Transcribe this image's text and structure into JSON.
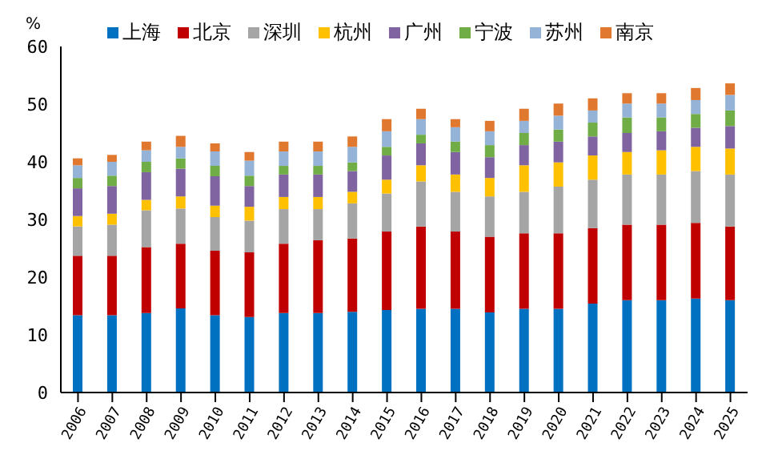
{
  "chart_data": {
    "type": "bar",
    "stacked": true,
    "ylabel": "%",
    "legend": "top",
    "grid": false,
    "categories": [
      "2006",
      "2007",
      "2008",
      "2009",
      "2010",
      "2011",
      "2012",
      "2013",
      "2014",
      "2015",
      "2016",
      "2017",
      "2018",
      "2019",
      "2020",
      "2021",
      "2022",
      "2023",
      "2024",
      "2025"
    ],
    "ylim": [
      0,
      60
    ],
    "yticks": [
      0,
      10,
      20,
      30,
      40,
      50,
      60
    ],
    "series": [
      {
        "name": "上海",
        "color": "#0070c0",
        "values": [
          13.4,
          13.4,
          13.8,
          14.6,
          13.4,
          13.1,
          13.8,
          13.8,
          14.0,
          14.3,
          14.5,
          14.5,
          13.9,
          14.5,
          14.5,
          15.4,
          16.0,
          16.0,
          16.3,
          16.0
        ]
      },
      {
        "name": "北京",
        "color": "#c00000",
        "values": [
          10.3,
          10.3,
          11.4,
          11.2,
          11.2,
          11.2,
          12.0,
          12.6,
          12.7,
          13.6,
          14.3,
          13.4,
          13.1,
          13.1,
          13.1,
          13.1,
          13.1,
          13.1,
          13.1,
          12.8
        ]
      },
      {
        "name": "深圳",
        "color": "#a5a5a5",
        "values": [
          5.1,
          5.4,
          6.4,
          6.1,
          5.8,
          5.5,
          6.0,
          5.4,
          6.1,
          6.6,
          7.8,
          6.9,
          7.0,
          7.2,
          8.1,
          8.4,
          8.7,
          8.7,
          9.0,
          9.0
        ]
      },
      {
        "name": "杭州",
        "color": "#ffc000",
        "values": [
          1.8,
          1.9,
          1.8,
          2.1,
          2.0,
          2.4,
          2.1,
          2.1,
          2.0,
          2.4,
          2.8,
          3.0,
          3.2,
          4.6,
          4.2,
          4.2,
          3.9,
          4.2,
          4.2,
          4.5
        ]
      },
      {
        "name": "广州",
        "color": "#8064a2",
        "values": [
          4.8,
          4.8,
          4.8,
          4.8,
          5.1,
          3.6,
          3.9,
          3.9,
          3.6,
          4.2,
          3.8,
          3.9,
          3.6,
          3.5,
          3.6,
          3.3,
          3.3,
          3.3,
          3.3,
          3.9
        ]
      },
      {
        "name": "宁波",
        "color": "#70ad47",
        "values": [
          1.8,
          1.8,
          1.8,
          1.8,
          1.8,
          1.8,
          1.5,
          1.5,
          1.5,
          1.5,
          1.5,
          1.8,
          2.1,
          2.1,
          2.1,
          2.4,
          2.7,
          2.4,
          2.4,
          2.7
        ]
      },
      {
        "name": "苏州",
        "color": "#95b3d7",
        "values": [
          2.2,
          2.4,
          2.0,
          2.0,
          2.5,
          2.6,
          2.5,
          2.5,
          2.7,
          2.7,
          2.7,
          2.5,
          2.4,
          2.1,
          2.4,
          2.1,
          2.4,
          2.4,
          2.4,
          2.7
        ]
      },
      {
        "name": "南京",
        "color": "#e0782f",
        "values": [
          1.2,
          1.2,
          1.5,
          1.9,
          1.4,
          1.5,
          1.7,
          1.7,
          1.8,
          2.1,
          1.8,
          1.4,
          1.8,
          2.1,
          2.1,
          2.1,
          1.8,
          1.8,
          2.1,
          2.0
        ]
      }
    ]
  }
}
